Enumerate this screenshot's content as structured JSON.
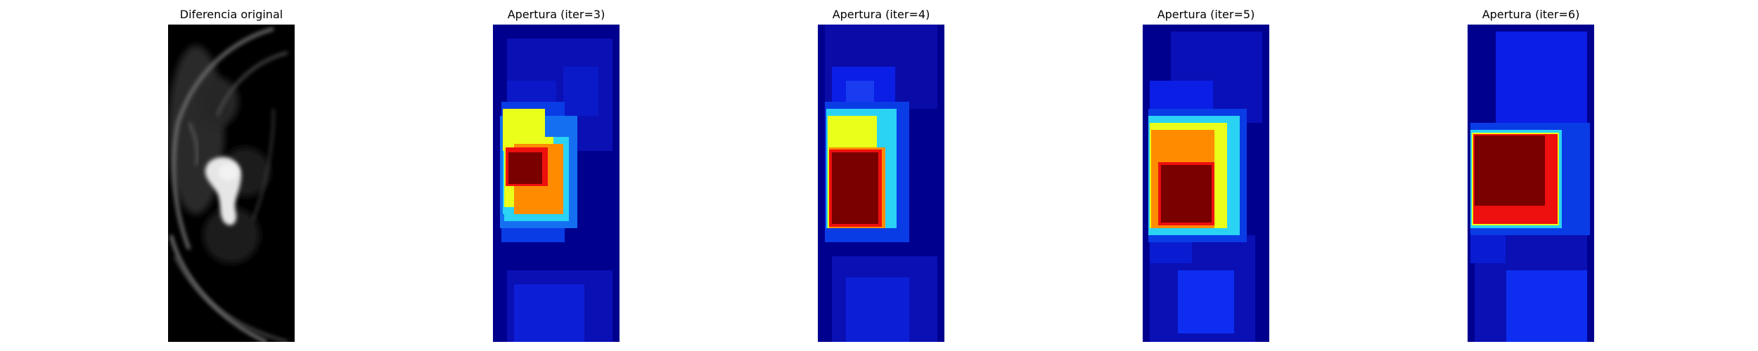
{
  "figure": {
    "panels": [
      {
        "id": "original",
        "title": "Diferencia original"
      },
      {
        "id": "iter3",
        "title": "Apertura (iter=3)"
      },
      {
        "id": "iter4",
        "title": "Apertura (iter=4)"
      },
      {
        "id": "iter5",
        "title": "Apertura (iter=5)"
      },
      {
        "id": "iter6",
        "title": "Apertura (iter=6)"
      }
    ],
    "colormaps": {
      "original": "gray",
      "openings": "jet"
    },
    "colors": {
      "jet_background": "#00008f",
      "jet_blue": "#0a1ee6",
      "jet_cyan": "#2ad2f4",
      "jet_yellow": "#eaff19",
      "jet_orange": "#ff8c00",
      "jet_red": "#ee0f0f",
      "jet_dark_red": "#7a0000"
    }
  }
}
